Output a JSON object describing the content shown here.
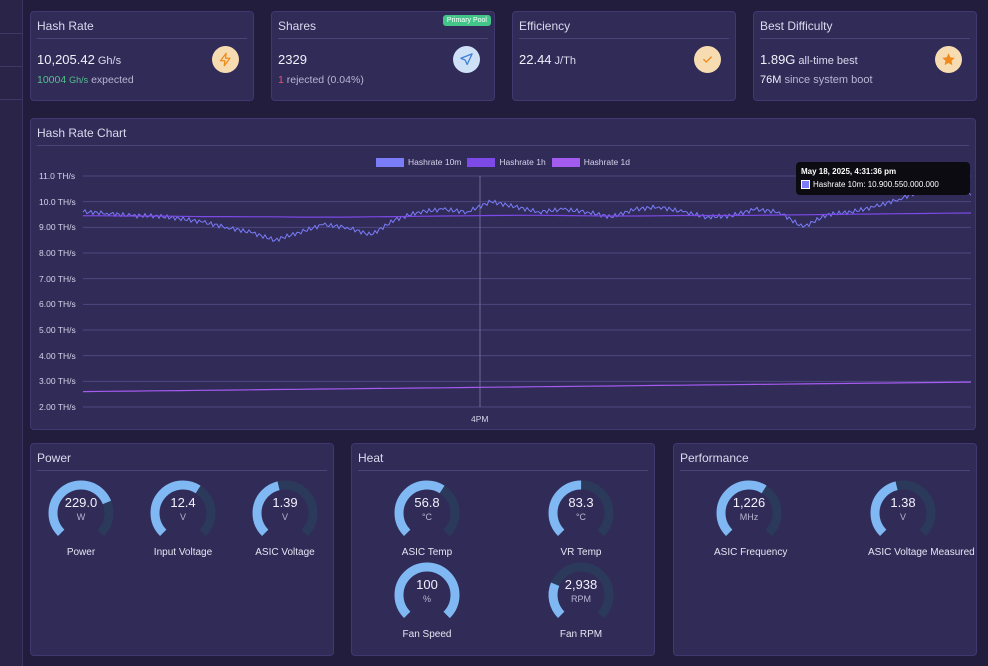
{
  "colors": {
    "background": "#221d3d",
    "card": "#312b58",
    "accent_gauge": "#7fb8f2",
    "gauge_track": "#2b3a5a",
    "series_10m": "#7a7cf8",
    "series_1h": "#7d4ae8",
    "series_1d": "#a45bf0",
    "positive": "#55c08a",
    "negative": "#e0566e"
  },
  "cards": {
    "hash_rate": {
      "title": "Hash Rate",
      "value": "10,205.42",
      "unit": "Gh/s",
      "expected_value": "10004",
      "expected_unit": "Gh/s",
      "expected_label": "expected",
      "icon": "lightning-icon"
    },
    "shares": {
      "title": "Shares",
      "badge": "Primary Pool",
      "value": "2329",
      "rejected_count": "1",
      "rejected_label": "rejected",
      "rejected_pct": "(0.04%)",
      "icon": "send-icon"
    },
    "efficiency": {
      "title": "Efficiency",
      "value": "22.44",
      "unit": "J/Th",
      "icon": "check-icon"
    },
    "best_difficulty": {
      "title": "Best Difficulty",
      "value": "1.89G",
      "value_suffix": "all-time best",
      "boot_value": "76M",
      "boot_suffix": "since system boot",
      "icon": "star-icon"
    }
  },
  "chart_data": {
    "type": "line",
    "title": "Hash Rate Chart",
    "y_unit": "TH/s",
    "ylim": [
      2.0,
      11.0
    ],
    "y_ticks": [
      "11.0 TH/s",
      "10.0 TH/s",
      "9.00 TH/s",
      "8.00 TH/s",
      "7.00 TH/s",
      "6.00 TH/s",
      "5.00 TH/s",
      "4.00 TH/s",
      "3.00 TH/s",
      "2.00 TH/s"
    ],
    "x_ticks": [
      "4PM"
    ],
    "grid": true,
    "legend_position": "top-center",
    "series": [
      {
        "name": "Hashrate 10m",
        "values": [
          9.6,
          9.55,
          9.45,
          9.45,
          9.35,
          9.2,
          9.0,
          8.8,
          8.5,
          8.8,
          9.1,
          9.0,
          8.7,
          9.3,
          9.6,
          9.7,
          9.6,
          10.0,
          9.8,
          9.6,
          9.7,
          9.6,
          9.4,
          9.7,
          9.8,
          9.6,
          9.4,
          9.45,
          9.7,
          9.6,
          9.0,
          9.5,
          9.6,
          9.8,
          10.1,
          10.45,
          10.9,
          10.25
        ]
      },
      {
        "name": "Hashrate 1h",
        "values": [
          9.45,
          9.45,
          9.44,
          9.44,
          9.43,
          9.42,
          9.42,
          9.41,
          9.41,
          9.4,
          9.4,
          9.4,
          9.41,
          9.42,
          9.43,
          9.44,
          9.45,
          9.46,
          9.47,
          9.47,
          9.46,
          9.45,
          9.44,
          9.44,
          9.45,
          9.46,
          9.46,
          9.46,
          9.47,
          9.48,
          9.49,
          9.5,
          9.51,
          9.52,
          9.53,
          9.54,
          9.55,
          9.56
        ]
      },
      {
        "name": "Hashrate 1d",
        "values": [
          2.6,
          2.61,
          2.62,
          2.63,
          2.64,
          2.65,
          2.66,
          2.67,
          2.68,
          2.69,
          2.7,
          2.71,
          2.72,
          2.73,
          2.74,
          2.75,
          2.76,
          2.77,
          2.78,
          2.79,
          2.8,
          2.81,
          2.82,
          2.83,
          2.84,
          2.85,
          2.86,
          2.87,
          2.88,
          2.89,
          2.9,
          2.91,
          2.92,
          2.93,
          2.94,
          2.95,
          2.96,
          2.97
        ]
      }
    ],
    "tooltip": {
      "title": "May 18, 2025, 4:31:36 pm",
      "line": "Hashrate 10m: 10.900.550.000.000"
    }
  },
  "power": {
    "title": "Power",
    "gauges": [
      {
        "value": "229.0",
        "unit": "W",
        "label": "Power",
        "fraction": 0.75
      },
      {
        "value": "12.4",
        "unit": "V",
        "label": "Input Voltage",
        "fraction": 0.62
      },
      {
        "value": "1.39",
        "unit": "V",
        "label": "ASIC Voltage",
        "fraction": 0.45
      }
    ]
  },
  "heat": {
    "title": "Heat",
    "gauges": [
      {
        "value": "56.8",
        "unit": "°C",
        "label": "ASIC Temp",
        "fraction": 0.62
      },
      {
        "value": "83.3",
        "unit": "°C",
        "label": "VR Temp",
        "fraction": 0.5
      },
      {
        "value": "100",
        "unit": "%",
        "label": "Fan Speed",
        "fraction": 1.0
      },
      {
        "value": "2,938",
        "unit": "RPM",
        "label": "Fan RPM",
        "fraction": 0.25
      }
    ]
  },
  "performance": {
    "title": "Performance",
    "gauges": [
      {
        "value": "1,226",
        "unit": "MHz",
        "label": "ASIC Frequency",
        "fraction": 0.62
      },
      {
        "value": "1.38",
        "unit": "V",
        "label": "ASIC Voltage Measured",
        "fraction": 0.45
      }
    ]
  }
}
